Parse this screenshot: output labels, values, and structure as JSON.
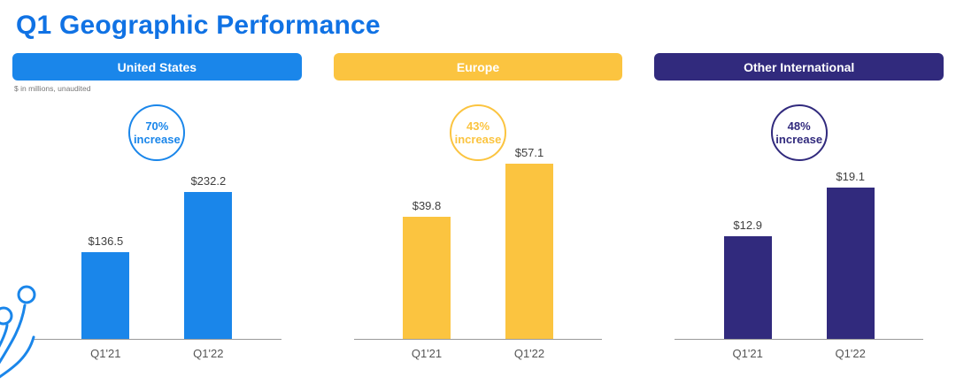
{
  "page": {
    "title": "Q1 Geographic Performance",
    "title_color": "#1072e4",
    "footnote": "$ in millions, unaudited"
  },
  "chart_data": [
    {
      "type": "bar",
      "title": "United States",
      "categories": [
        "Q1'21",
        "Q1'22"
      ],
      "values": [
        136.5,
        232.2
      ],
      "value_labels": [
        "$136.5",
        "$232.2"
      ],
      "badge": {
        "percent": "70%",
        "label": "increase"
      },
      "color": "#1a86ea",
      "ylim": [
        0,
        300
      ],
      "grid": false,
      "legend": false
    },
    {
      "type": "bar",
      "title": "Europe",
      "categories": [
        "Q1'21",
        "Q1'22"
      ],
      "values": [
        39.8,
        57.1
      ],
      "value_labels": [
        "$39.8",
        "$57.1"
      ],
      "badge": {
        "percent": "43%",
        "label": "increase"
      },
      "color": "#fbc440",
      "ylim": [
        0,
        62
      ],
      "grid": false,
      "legend": false
    },
    {
      "type": "bar",
      "title": "Other International",
      "categories": [
        "Q1'21",
        "Q1'22"
      ],
      "values": [
        12.9,
        19.1
      ],
      "value_labels": [
        "$12.9",
        "$19.1"
      ],
      "badge": {
        "percent": "48%",
        "label": "increase"
      },
      "color": "#312a7d",
      "ylim": [
        0,
        24
      ],
      "grid": false,
      "legend": false
    }
  ]
}
